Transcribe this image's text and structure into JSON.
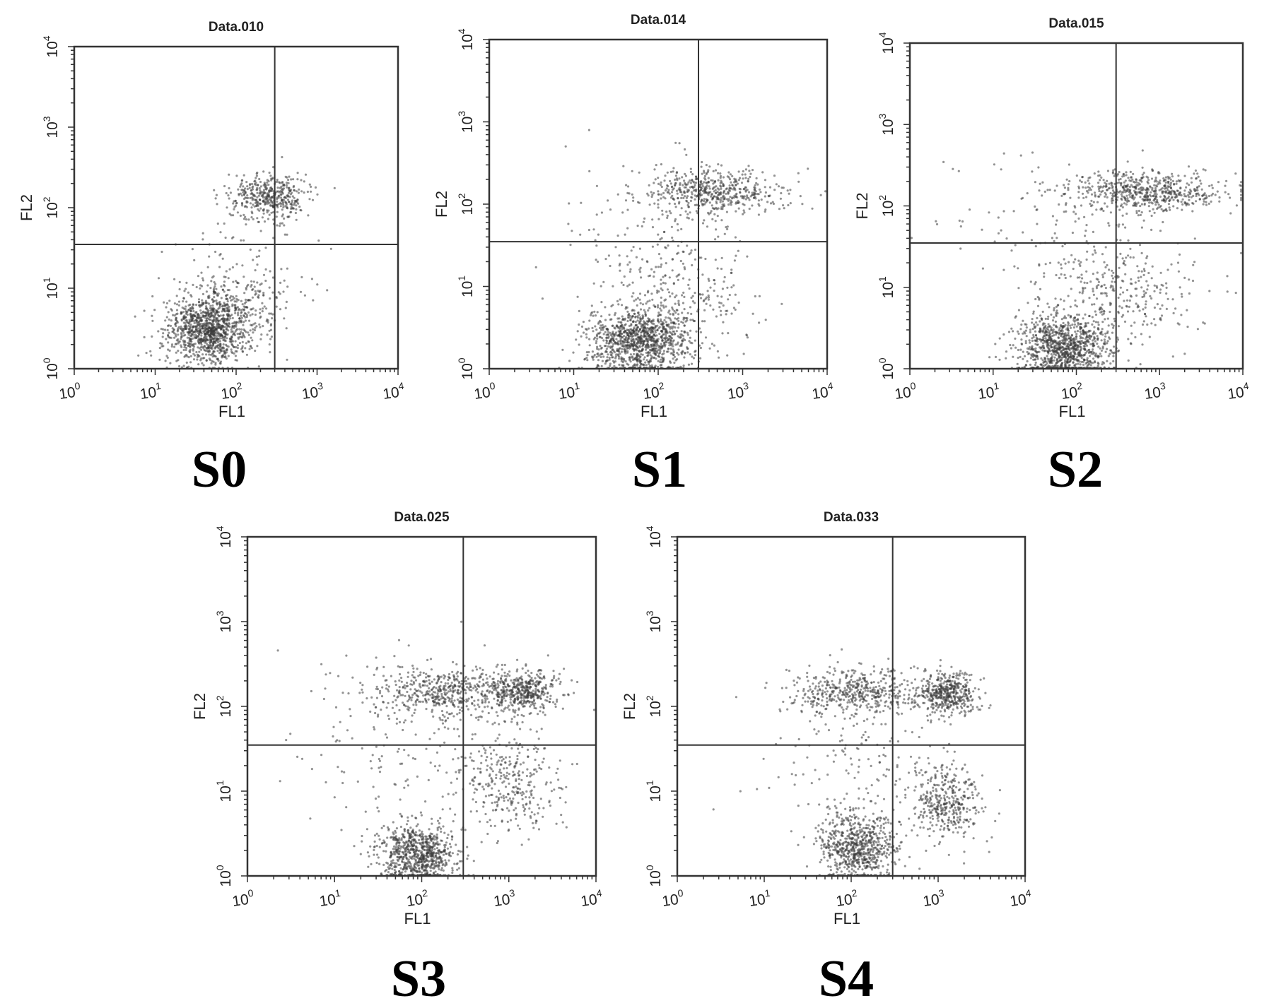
{
  "figure": {
    "background": "#ffffff",
    "ink": "#333333"
  },
  "chart_data": [
    {
      "type": "scatter",
      "title": "Data.010",
      "caption": "S0",
      "xlabel": "FL1",
      "ylabel": "FL2",
      "xscale": "log",
      "yscale": "log",
      "xlim": [
        1,
        10000
      ],
      "ylim": [
        1,
        10000
      ],
      "x_ticks": [
        "10",
        "10",
        "10",
        "10",
        "10"
      ],
      "x_tick_exponents": [
        "0",
        "1",
        "2",
        "3",
        "4"
      ],
      "y_ticks": [
        "10",
        "10",
        "10",
        "10",
        "10"
      ],
      "y_tick_exponents": [
        "0",
        "1",
        "2",
        "3",
        "4"
      ],
      "quadrant_gate": {
        "x": 300,
        "y": 35
      },
      "populations": [
        {
          "center": [
            45,
            3
          ],
          "spread": [
            0.26,
            0.2
          ],
          "count": 1100
        },
        {
          "center": [
            110,
            7
          ],
          "spread": [
            0.3,
            0.22
          ],
          "count": 220
        },
        {
          "center": [
            250,
            140
          ],
          "spread": [
            0.24,
            0.14
          ],
          "count": 420
        },
        {
          "center": [
            100,
            30
          ],
          "spread": [
            0.5,
            0.4
          ],
          "count": 60
        }
      ]
    },
    {
      "type": "scatter",
      "title": "Data.014",
      "caption": "S1",
      "xlabel": "FL1",
      "ylabel": "FL2",
      "xscale": "log",
      "yscale": "log",
      "xlim": [
        1,
        10000
      ],
      "ylim": [
        1,
        10000
      ],
      "x_ticks": [
        "10",
        "10",
        "10",
        "10",
        "10"
      ],
      "x_tick_exponents": [
        "0",
        "1",
        "2",
        "3",
        "4"
      ],
      "y_ticks": [
        "10",
        "10",
        "10",
        "10",
        "10"
      ],
      "y_tick_exponents": [
        "0",
        "1",
        "2",
        "3",
        "4"
      ],
      "quadrant_gate": {
        "x": 300,
        "y": 35
      },
      "populations": [
        {
          "center": [
            60,
            2.2
          ],
          "spread": [
            0.3,
            0.2
          ],
          "count": 1100
        },
        {
          "center": [
            200,
            8
          ],
          "spread": [
            0.45,
            0.35
          ],
          "count": 260
        },
        {
          "center": [
            450,
            140
          ],
          "spread": [
            0.38,
            0.14
          ],
          "count": 520
        },
        {
          "center": [
            80,
            60
          ],
          "spread": [
            0.6,
            0.45
          ],
          "count": 110
        }
      ]
    },
    {
      "type": "scatter",
      "title": "Data.015",
      "caption": "S2",
      "xlabel": "FL1",
      "ylabel": "FL2",
      "xscale": "log",
      "yscale": "log",
      "xlim": [
        1,
        10000
      ],
      "ylim": [
        1,
        10000
      ],
      "x_ticks": [
        "10",
        "10",
        "10",
        "10",
        "10"
      ],
      "x_tick_exponents": [
        "0",
        "1",
        "2",
        "3",
        "4"
      ],
      "y_ticks": [
        "10",
        "10",
        "10",
        "10",
        "10"
      ],
      "y_tick_exponents": [
        "0",
        "1",
        "2",
        "3",
        "4"
      ],
      "quadrant_gate": {
        "x": 300,
        "y": 35
      },
      "populations": [
        {
          "center": [
            70,
            1.8
          ],
          "spread": [
            0.28,
            0.2
          ],
          "count": 1000
        },
        {
          "center": [
            300,
            8
          ],
          "spread": [
            0.5,
            0.35
          ],
          "count": 320
        },
        {
          "center": [
            700,
            150
          ],
          "spread": [
            0.48,
            0.12
          ],
          "count": 600
        },
        {
          "center": [
            60,
            50
          ],
          "spread": [
            0.7,
            0.45
          ],
          "count": 110
        }
      ]
    },
    {
      "type": "scatter",
      "title": "Data.025",
      "caption": "S3",
      "xlabel": "FL1",
      "ylabel": "FL2",
      "xscale": "log",
      "yscale": "log",
      "xlim": [
        1,
        10000
      ],
      "ylim": [
        1,
        10000
      ],
      "x_ticks": [
        "10",
        "10",
        "10",
        "10",
        "10"
      ],
      "x_tick_exponents": [
        "0",
        "1",
        "2",
        "3",
        "4"
      ],
      "y_ticks": [
        "10",
        "10",
        "10",
        "10",
        "10"
      ],
      "y_tick_exponents": [
        "0",
        "1",
        "2",
        "3",
        "4"
      ],
      "quadrant_gate": {
        "x": 300,
        "y": 35
      },
      "populations": [
        {
          "center": [
            90,
            1.8
          ],
          "spread": [
            0.22,
            0.18
          ],
          "count": 800
        },
        {
          "center": [
            1000,
            12
          ],
          "spread": [
            0.3,
            0.3
          ],
          "count": 320
        },
        {
          "center": [
            220,
            150
          ],
          "spread": [
            0.5,
            0.14
          ],
          "count": 560
        },
        {
          "center": [
            1500,
            150
          ],
          "spread": [
            0.2,
            0.12
          ],
          "count": 380
        },
        {
          "center": [
            80,
            40
          ],
          "spread": [
            0.65,
            0.5
          ],
          "count": 160
        }
      ]
    },
    {
      "type": "scatter",
      "title": "Data.033",
      "caption": "S4",
      "xlabel": "FL1",
      "ylabel": "FL2",
      "xscale": "log",
      "yscale": "log",
      "xlim": [
        1,
        10000
      ],
      "ylim": [
        1,
        10000
      ],
      "x_ticks": [
        "10",
        "10",
        "10",
        "10",
        "10"
      ],
      "x_tick_exponents": [
        "0",
        "1",
        "2",
        "3",
        "4"
      ],
      "y_ticks": [
        "10",
        "10",
        "10",
        "10",
        "10"
      ],
      "y_tick_exponents": [
        "0",
        "1",
        "2",
        "3",
        "4"
      ],
      "quadrant_gate": {
        "x": 300,
        "y": 35
      },
      "populations": [
        {
          "center": [
            120,
            2.2
          ],
          "spread": [
            0.22,
            0.2
          ],
          "count": 700
        },
        {
          "center": [
            1200,
            7
          ],
          "spread": [
            0.2,
            0.22
          ],
          "count": 380
        },
        {
          "center": [
            120,
            150
          ],
          "spread": [
            0.38,
            0.13
          ],
          "count": 480
        },
        {
          "center": [
            1300,
            140
          ],
          "spread": [
            0.16,
            0.12
          ],
          "count": 440
        },
        {
          "center": [
            150,
            25
          ],
          "spread": [
            0.6,
            0.45
          ],
          "count": 160
        }
      ]
    }
  ]
}
